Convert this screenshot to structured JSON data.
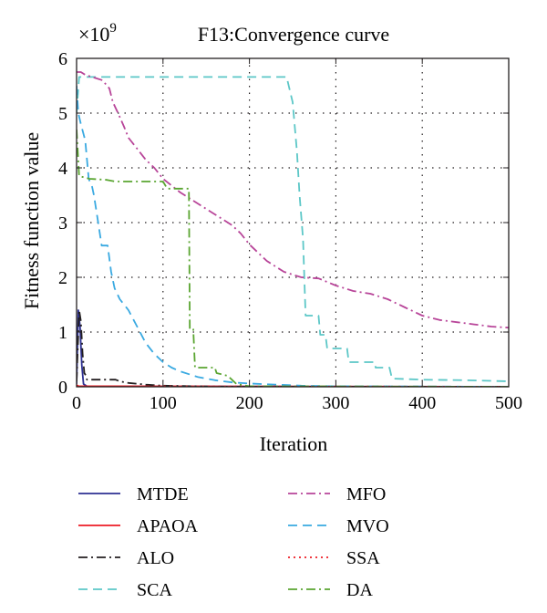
{
  "chart_data": {
    "type": "line",
    "title": "F13:Convergence curve",
    "xlabel": "Iteration",
    "ylabel": "Fitness function value",
    "y_multiplier": "×10",
    "y_multiplier_exponent": "9",
    "xlim": [
      0,
      500
    ],
    "ylim": [
      0,
      6
    ],
    "xticks": [
      0,
      100,
      200,
      300,
      400,
      500
    ],
    "yticks": [
      0,
      1,
      2,
      3,
      4,
      5,
      6
    ],
    "grid": true,
    "legend_position": "below plot",
    "series": [
      {
        "name": "MTDE",
        "color": "#2e3192",
        "dash": "solid",
        "points": [
          [
            0,
            0.05
          ],
          [
            2,
            1.4
          ],
          [
            4,
            1.1
          ],
          [
            6,
            0.4
          ],
          [
            8,
            0.05
          ],
          [
            12,
            0.01
          ],
          [
            500,
            0
          ]
        ]
      },
      {
        "name": "APAOA",
        "color": "#ed1c24",
        "dash": "solid",
        "points": [
          [
            0,
            0.02
          ],
          [
            2,
            0.01
          ],
          [
            500,
            0
          ]
        ]
      },
      {
        "name": "ALO",
        "color": "#231f20",
        "dash": "dashdot",
        "points": [
          [
            0,
            0.1
          ],
          [
            3,
            1.4
          ],
          [
            5,
            1.2
          ],
          [
            7,
            0.6
          ],
          [
            9,
            0.25
          ],
          [
            11,
            0.2
          ],
          [
            12,
            0.13
          ],
          [
            45,
            0.13
          ],
          [
            50,
            0.1
          ],
          [
            60,
            0.07
          ],
          [
            80,
            0.04
          ],
          [
            100,
            0.02
          ],
          [
            150,
            0.005
          ],
          [
            200,
            0
          ],
          [
            500,
            0
          ]
        ]
      },
      {
        "name": "SCA",
        "color": "#5cc7c7",
        "dash": "dash",
        "points": [
          [
            0,
            5.0
          ],
          [
            3,
            5.66
          ],
          [
            243,
            5.66
          ],
          [
            250,
            5.2
          ],
          [
            255,
            4.3
          ],
          [
            258,
            3.5
          ],
          [
            262,
            2.7
          ],
          [
            265,
            1.3
          ],
          [
            280,
            1.3
          ],
          [
            282,
            0.95
          ],
          [
            288,
            0.95
          ],
          [
            290,
            0.7
          ],
          [
            313,
            0.7
          ],
          [
            315,
            0.45
          ],
          [
            345,
            0.45
          ],
          [
            346,
            0.35
          ],
          [
            362,
            0.35
          ],
          [
            365,
            0.15
          ],
          [
            400,
            0.13
          ],
          [
            450,
            0.12
          ],
          [
            500,
            0.1
          ]
        ]
      },
      {
        "name": "MFO",
        "color": "#b84599",
        "dash": "dashdot",
        "points": [
          [
            0,
            5.75
          ],
          [
            5,
            5.75
          ],
          [
            10,
            5.7
          ],
          [
            20,
            5.65
          ],
          [
            30,
            5.6
          ],
          [
            38,
            5.45
          ],
          [
            42,
            5.2
          ],
          [
            48,
            5.0
          ],
          [
            55,
            4.75
          ],
          [
            60,
            4.55
          ],
          [
            70,
            4.35
          ],
          [
            80,
            4.15
          ],
          [
            90,
            4.0
          ],
          [
            100,
            3.8
          ],
          [
            120,
            3.55
          ],
          [
            140,
            3.35
          ],
          [
            160,
            3.15
          ],
          [
            180,
            2.95
          ],
          [
            190,
            2.8
          ],
          [
            200,
            2.6
          ],
          [
            210,
            2.45
          ],
          [
            220,
            2.3
          ],
          [
            230,
            2.2
          ],
          [
            240,
            2.1
          ],
          [
            260,
            2.0
          ],
          [
            280,
            1.98
          ],
          [
            300,
            1.85
          ],
          [
            320,
            1.75
          ],
          [
            340,
            1.7
          ],
          [
            360,
            1.6
          ],
          [
            380,
            1.45
          ],
          [
            400,
            1.3
          ],
          [
            420,
            1.22
          ],
          [
            440,
            1.18
          ],
          [
            460,
            1.14
          ],
          [
            480,
            1.1
          ],
          [
            500,
            1.08
          ]
        ]
      },
      {
        "name": "MVO",
        "color": "#39a9e1",
        "dash": "dash",
        "points": [
          [
            0,
            5.5
          ],
          [
            2,
            5.0
          ],
          [
            5,
            4.8
          ],
          [
            10,
            4.5
          ],
          [
            14,
            3.8
          ],
          [
            18,
            3.65
          ],
          [
            20,
            3.5
          ],
          [
            25,
            3.0
          ],
          [
            29,
            2.58
          ],
          [
            36,
            2.58
          ],
          [
            40,
            2.1
          ],
          [
            44,
            1.8
          ],
          [
            50,
            1.6
          ],
          [
            60,
            1.4
          ],
          [
            70,
            1.1
          ],
          [
            80,
            0.8
          ],
          [
            90,
            0.6
          ],
          [
            100,
            0.45
          ],
          [
            110,
            0.35
          ],
          [
            120,
            0.28
          ],
          [
            140,
            0.18
          ],
          [
            160,
            0.12
          ],
          [
            180,
            0.08
          ],
          [
            200,
            0.06
          ],
          [
            230,
            0.04
          ],
          [
            260,
            0.02
          ],
          [
            300,
            0.01
          ],
          [
            500,
            0.0
          ]
        ]
      },
      {
        "name": "SSA",
        "color": "#ed1c24",
        "dash": "dot",
        "points": [
          [
            0,
            0.03
          ],
          [
            3,
            0.01
          ],
          [
            500,
            0
          ]
        ]
      },
      {
        "name": "DA",
        "color": "#5aa531",
        "dash": "dashdot",
        "points": [
          [
            0,
            4.7
          ],
          [
            3,
            3.85
          ],
          [
            15,
            3.8
          ],
          [
            35,
            3.78
          ],
          [
            45,
            3.75
          ],
          [
            100,
            3.75
          ],
          [
            105,
            3.62
          ],
          [
            130,
            3.62
          ],
          [
            131,
            1.05
          ],
          [
            135,
            1.05
          ],
          [
            137,
            0.35
          ],
          [
            160,
            0.35
          ],
          [
            162,
            0.25
          ],
          [
            175,
            0.2
          ],
          [
            185,
            0.05
          ],
          [
            200,
            0.01
          ],
          [
            500,
            0
          ]
        ]
      }
    ]
  }
}
